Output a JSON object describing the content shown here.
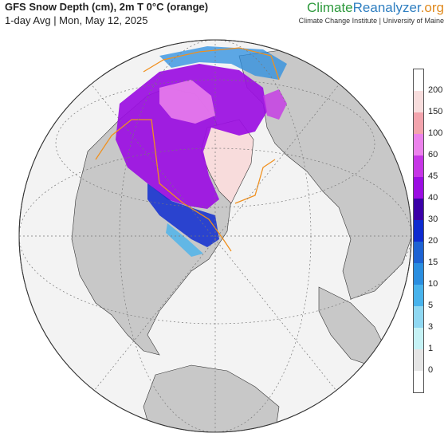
{
  "header": {
    "title": "GFS Snow Depth (cm), 2m T 0°C (orange)",
    "subtitle": "1-day Avg | Mon, May 12, 2025"
  },
  "brand": {
    "part1": "Climate",
    "part2": "Reanalyzer",
    "part3": ".org",
    "tagline": "Climate Change Institute | University of Maine"
  },
  "legend": {
    "labels": [
      "200",
      "150",
      "100",
      "60",
      "45",
      "40",
      "30",
      "20",
      "15",
      "10",
      "5",
      "3",
      "1",
      "0"
    ],
    "colors": [
      "#ffffff",
      "#f8dddd",
      "#f3a4ad",
      "#ec82ec",
      "#c636e6",
      "#9b0ee2",
      "#3b00a8",
      "#0e2bd0",
      "#1d62d3",
      "#2a8ee0",
      "#48b3ec",
      "#8fd8f2",
      "#c5f2f5",
      "#e5e5e5",
      "#ffffff"
    ]
  },
  "map": {
    "ocean_color": "#f2f2f2",
    "land_color": "#c8c8c8",
    "isotherm_color": "#f0901e"
  }
}
